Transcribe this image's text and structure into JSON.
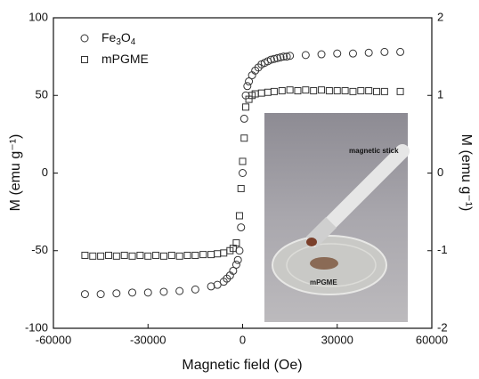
{
  "chart_data": {
    "type": "scatter",
    "x_label": "Magnetic field (Oe)",
    "y_label": "M (emu g⁻¹)",
    "y2_label": "M (emu g⁻¹)",
    "xlim": [
      -60000,
      60000
    ],
    "xticks": [
      -60000,
      -30000,
      0,
      30000,
      60000
    ],
    "ylim": [
      -100,
      100
    ],
    "yticks": [
      -100,
      -50,
      0,
      50,
      100
    ],
    "y2lim": [
      -2,
      2
    ],
    "y2ticks": [
      -2,
      -1,
      0,
      1,
      2
    ],
    "legend": "upper left",
    "annotations": [
      "magnetic stick",
      "mPGME"
    ],
    "series": [
      {
        "name": "Fe3O4",
        "marker": "circle",
        "color": "#333333",
        "x": [
          -50000,
          -45000,
          -40000,
          -35000,
          -30000,
          -25000,
          -20000,
          -15000,
          -10000,
          -8000,
          -6000,
          -5000,
          -4000,
          -3000,
          -2000,
          -1500,
          -1000,
          -500,
          0,
          500,
          1000,
          1500,
          2000,
          3000,
          4000,
          5000,
          6000,
          7000,
          8000,
          9000,
          10000,
          11000,
          12000,
          13000,
          14000,
          15000,
          20000,
          25000,
          30000,
          35000,
          40000,
          45000,
          50000
        ],
        "values": [
          -78,
          -78,
          -77.5,
          -77,
          -77,
          -76.5,
          -76,
          -75,
          -73,
          -72,
          -70,
          -68,
          -66,
          -63,
          -59,
          -56,
          -50,
          -35,
          0,
          35,
          50,
          56,
          59,
          63,
          66,
          68,
          70,
          71,
          72,
          73,
          73.5,
          74,
          74.5,
          75,
          75,
          75.5,
          76,
          76.5,
          77,
          77,
          77.5,
          78,
          78
        ]
      },
      {
        "name": "mPGME",
        "marker": "square",
        "color": "#333333",
        "axis": "y2",
        "x": [
          -50000,
          -47500,
          -45000,
          -42500,
          -40000,
          -37500,
          -35000,
          -32500,
          -30000,
          -27500,
          -25000,
          -22500,
          -20000,
          -17500,
          -15000,
          -12500,
          -10000,
          -8000,
          -6000,
          -4000,
          -3000,
          -2000,
          -1000,
          -500,
          0,
          500,
          1000,
          2000,
          3000,
          4000,
          6000,
          8000,
          10000,
          12500,
          15000,
          17500,
          20000,
          22500,
          25000,
          27500,
          30000,
          32500,
          35000,
          37500,
          40000,
          42500,
          45000,
          50000
        ],
        "values": [
          -1.06,
          -1.07,
          -1.07,
          -1.06,
          -1.07,
          -1.06,
          -1.07,
          -1.06,
          -1.07,
          -1.06,
          -1.07,
          -1.06,
          -1.07,
          -1.06,
          -1.06,
          -1.05,
          -1.05,
          -1.04,
          -1.03,
          -1.0,
          -0.97,
          -0.9,
          -0.55,
          -0.2,
          0.15,
          0.45,
          0.85,
          0.95,
          1.0,
          1.02,
          1.03,
          1.04,
          1.05,
          1.06,
          1.07,
          1.06,
          1.07,
          1.06,
          1.07,
          1.06,
          1.06,
          1.06,
          1.05,
          1.06,
          1.06,
          1.05,
          1.05,
          1.05
        ]
      }
    ]
  }
}
